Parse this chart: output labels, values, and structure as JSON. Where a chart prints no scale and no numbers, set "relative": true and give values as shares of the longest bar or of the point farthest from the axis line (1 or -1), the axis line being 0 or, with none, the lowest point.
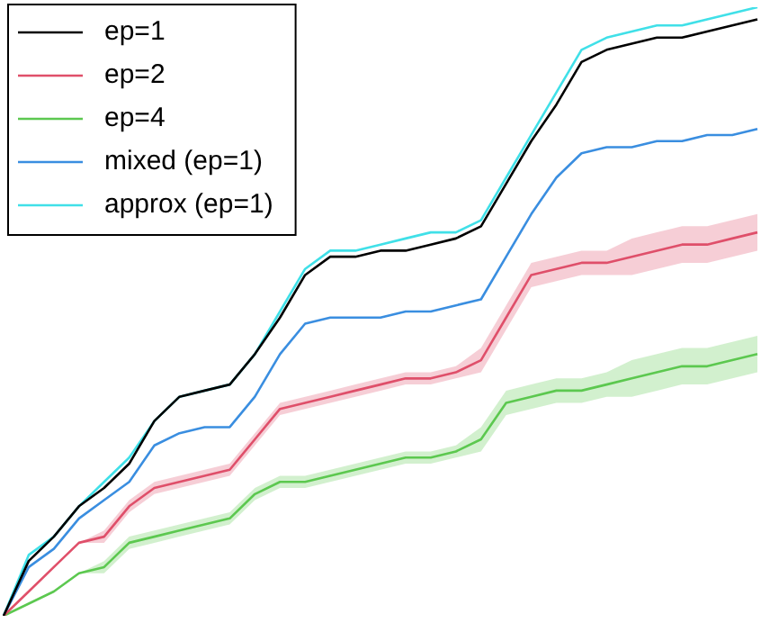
{
  "chart_data": {
    "type": "line",
    "relative": true,
    "legend": "top left",
    "marker": "none",
    "line_style": "solid",
    "categories": [
      null,
      null,
      null,
      null,
      null,
      null,
      null,
      null,
      null,
      null,
      null,
      null,
      null,
      null,
      null,
      null,
      null,
      null,
      null,
      null,
      null,
      null,
      null,
      null,
      null,
      null,
      null,
      null,
      null,
      null,
      null
    ],
    "series": [
      {
        "name": "ep=1",
        "color": "#000000",
        "values": [
          0,
          0.09,
          0.13,
          0.18,
          0.21,
          0.25,
          0.32,
          0.36,
          0.37,
          0.38,
          0.43,
          0.49,
          0.56,
          0.59,
          0.59,
          0.6,
          0.6,
          0.61,
          0.62,
          0.64,
          0.71,
          0.78,
          0.84,
          0.91,
          0.93,
          0.94,
          0.95,
          0.95,
          0.96,
          0.97,
          0.98
        ]
      },
      {
        "name": "ep=2",
        "color": "#e0506a",
        "values": [
          0,
          0.04,
          0.08,
          0.12,
          0.13,
          0.18,
          0.21,
          0.22,
          0.23,
          0.24,
          0.29,
          0.34,
          0.35,
          0.36,
          0.37,
          0.38,
          0.39,
          0.39,
          0.4,
          0.42,
          0.49,
          0.56,
          0.57,
          0.58,
          0.58,
          0.59,
          0.6,
          0.61,
          0.61,
          0.62,
          0.63
        ],
        "lower": [
          0,
          0.04,
          0.08,
          0.12,
          0.12,
          0.17,
          0.2,
          0.21,
          0.22,
          0.23,
          0.28,
          0.33,
          0.34,
          0.35,
          0.36,
          0.37,
          0.38,
          0.38,
          0.39,
          0.4,
          0.47,
          0.54,
          0.55,
          0.56,
          0.56,
          0.56,
          0.57,
          0.58,
          0.58,
          0.59,
          0.6
        ],
        "upper": [
          0,
          0.04,
          0.08,
          0.12,
          0.14,
          0.19,
          0.22,
          0.23,
          0.24,
          0.25,
          0.3,
          0.35,
          0.36,
          0.37,
          0.38,
          0.39,
          0.4,
          0.4,
          0.41,
          0.44,
          0.51,
          0.58,
          0.59,
          0.6,
          0.6,
          0.62,
          0.63,
          0.64,
          0.64,
          0.65,
          0.66
        ]
      },
      {
        "name": "ep=4",
        "color": "#5cc850",
        "values": [
          0,
          0.02,
          0.04,
          0.07,
          0.08,
          0.12,
          0.13,
          0.14,
          0.15,
          0.16,
          0.2,
          0.22,
          0.22,
          0.23,
          0.24,
          0.25,
          0.26,
          0.26,
          0.27,
          0.29,
          0.35,
          0.36,
          0.37,
          0.37,
          0.38,
          0.39,
          0.4,
          0.41,
          0.41,
          0.42,
          0.43
        ],
        "lower": [
          0,
          0.02,
          0.04,
          0.07,
          0.07,
          0.11,
          0.12,
          0.13,
          0.14,
          0.15,
          0.19,
          0.21,
          0.21,
          0.22,
          0.23,
          0.24,
          0.25,
          0.25,
          0.26,
          0.27,
          0.33,
          0.34,
          0.35,
          0.35,
          0.36,
          0.36,
          0.37,
          0.38,
          0.38,
          0.39,
          0.4
        ],
        "upper": [
          0,
          0.02,
          0.04,
          0.07,
          0.09,
          0.13,
          0.14,
          0.15,
          0.16,
          0.17,
          0.21,
          0.23,
          0.23,
          0.24,
          0.25,
          0.26,
          0.27,
          0.27,
          0.28,
          0.31,
          0.37,
          0.38,
          0.39,
          0.39,
          0.4,
          0.42,
          0.43,
          0.44,
          0.44,
          0.45,
          0.46
        ]
      },
      {
        "name": "mixed (ep=1)",
        "color": "#3a8ee0",
        "values": [
          0,
          0.08,
          0.11,
          0.16,
          0.19,
          0.22,
          0.28,
          0.3,
          0.31,
          0.31,
          0.36,
          0.43,
          0.48,
          0.49,
          0.49,
          0.49,
          0.5,
          0.5,
          0.51,
          0.52,
          0.59,
          0.66,
          0.72,
          0.76,
          0.77,
          0.77,
          0.78,
          0.78,
          0.79,
          0.79,
          0.8
        ]
      },
      {
        "name": "approx (ep=1)",
        "color": "#40e0e8",
        "values": [
          0,
          0.1,
          0.13,
          0.18,
          0.22,
          0.26,
          0.32,
          0.36,
          0.37,
          0.38,
          0.43,
          0.5,
          0.57,
          0.6,
          0.6,
          0.61,
          0.62,
          0.63,
          0.63,
          0.65,
          0.72,
          0.79,
          0.86,
          0.93,
          0.95,
          0.96,
          0.97,
          0.97,
          0.98,
          0.99,
          1
        ]
      }
    ]
  }
}
